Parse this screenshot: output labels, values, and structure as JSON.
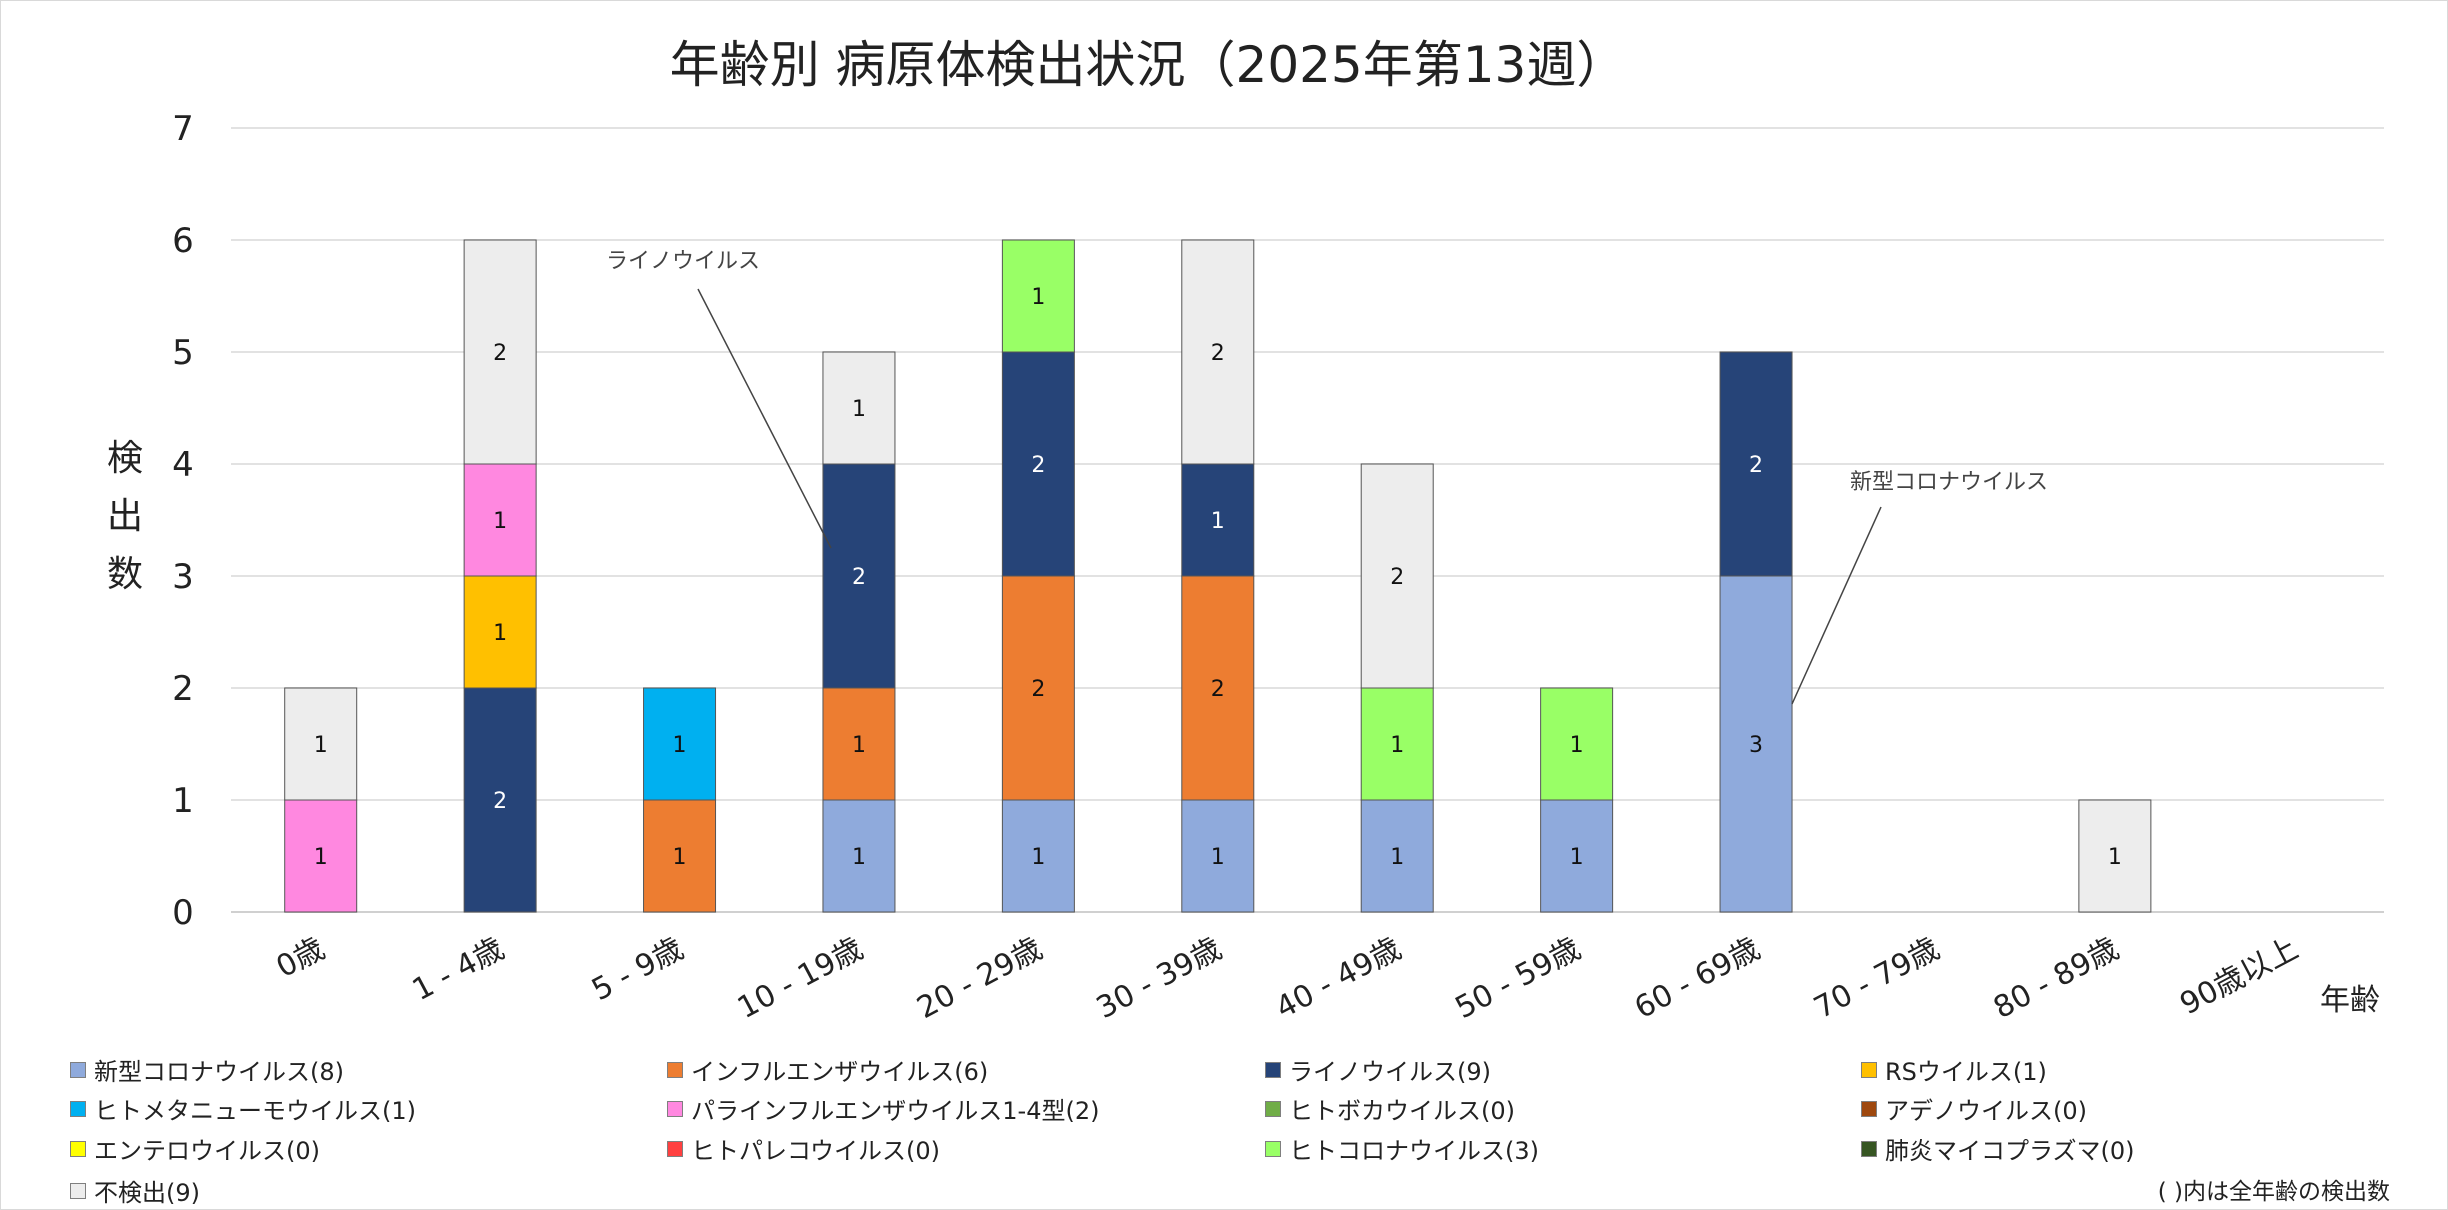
{
  "chart_data": {
    "type": "bar",
    "stacked": true,
    "title": "年齢別 病原体検出状況（2025年第13週）",
    "xlabel": "年齢",
    "ylabel": "検出数",
    "ylim": [
      0,
      7
    ],
    "yticks": [
      0,
      1,
      2,
      3,
      4,
      5,
      6,
      7
    ],
    "grid": true,
    "legend_placement": "bottom",
    "categories": [
      "0歳",
      "1 - 4歳",
      "5 - 9歳",
      "10 - 19歳",
      "20 - 29歳",
      "30 - 39歳",
      "40 - 49歳",
      "50 - 59歳",
      "60 - 69歳",
      "70 - 79歳",
      "80 - 89歳",
      "90歳以上"
    ],
    "series": [
      {
        "name": "新型コロナウイルス(8)",
        "color": "#8faadc",
        "values": [
          0,
          0,
          0,
          1,
          1,
          1,
          1,
          1,
          3,
          0,
          0,
          0
        ]
      },
      {
        "name": "インフルエンザウイルス(6)",
        "color": "#ed7d31",
        "values": [
          0,
          0,
          1,
          1,
          2,
          2,
          0,
          0,
          0,
          0,
          0,
          0
        ]
      },
      {
        "name": "ライノウイルス(9)",
        "color": "#264478",
        "values": [
          0,
          2,
          0,
          2,
          2,
          1,
          0,
          0,
          2,
          0,
          0,
          0
        ]
      },
      {
        "name": "RSウイルス(1)",
        "color": "#ffc000",
        "values": [
          0,
          1,
          0,
          0,
          0,
          0,
          0,
          0,
          0,
          0,
          0,
          0
        ]
      },
      {
        "name": "ヒトメタニューモウイルス(1)",
        "color": "#00b0f0",
        "values": [
          0,
          0,
          1,
          0,
          0,
          0,
          0,
          0,
          0,
          0,
          0,
          0
        ]
      },
      {
        "name": "パラインフルエンザウイルス1-4型(2)",
        "color": "#ff88e0",
        "values": [
          1,
          1,
          0,
          0,
          0,
          0,
          0,
          0,
          0,
          0,
          0,
          0
        ]
      },
      {
        "name": "ヒトボカウイルス(0)",
        "color": "#70ad47",
        "values": [
          0,
          0,
          0,
          0,
          0,
          0,
          0,
          0,
          0,
          0,
          0,
          0
        ]
      },
      {
        "name": "アデノウイルス(0)",
        "color": "#9e480e",
        "values": [
          0,
          0,
          0,
          0,
          0,
          0,
          0,
          0,
          0,
          0,
          0,
          0
        ]
      },
      {
        "name": "エンテロウイルス(0)",
        "color": "#ffff00",
        "values": [
          0,
          0,
          0,
          0,
          0,
          0,
          0,
          0,
          0,
          0,
          0,
          0
        ]
      },
      {
        "name": "ヒトパレコウイルス(0)",
        "color": "#ff4040",
        "values": [
          0,
          0,
          0,
          0,
          0,
          0,
          0,
          0,
          0,
          0,
          0,
          0
        ]
      },
      {
        "name": "ヒトコロナウイルス(3)",
        "color": "#99ff66",
        "values": [
          0,
          0,
          0,
          0,
          1,
          0,
          1,
          1,
          0,
          0,
          0,
          0
        ]
      },
      {
        "name": "肺炎マイコプラズマ(0)",
        "color": "#375623",
        "values": [
          0,
          0,
          0,
          0,
          0,
          0,
          0,
          0,
          0,
          0,
          0,
          0
        ]
      },
      {
        "name": "不検出(9)",
        "color": "#ededed",
        "values": [
          1,
          2,
          0,
          1,
          0,
          2,
          2,
          0,
          0,
          0,
          1,
          0
        ]
      }
    ],
    "annotations": [
      {
        "text": "ライノウイルス",
        "series": "ライノウイルス(9)",
        "category": "10 - 19歳"
      },
      {
        "text": "新型コロナウイルス",
        "series": "新型コロナウイルス(8)",
        "category": "60 - 69歳"
      }
    ],
    "note": "( )内は全年齢の検出数"
  }
}
